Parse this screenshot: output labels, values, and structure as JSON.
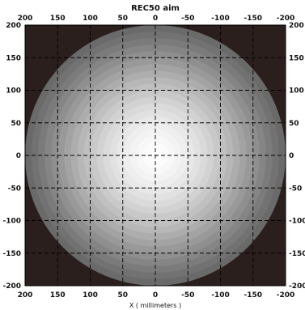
{
  "chart_data": {
    "type": "heatmap",
    "title": "REC50 aim",
    "xlabel": "X ( millimeters )",
    "ylabel": "",
    "xlim": [
      200,
      -200
    ],
    "ylim": [
      -200,
      200
    ],
    "x_ticks": [
      200,
      150,
      100,
      50,
      0,
      -50,
      -100,
      -150,
      -200
    ],
    "y_ticks": [
      200,
      150,
      100,
      50,
      0,
      -50,
      -100,
      -150,
      -200
    ],
    "grid": true,
    "grid_style": "dashed",
    "field": {
      "shape": "radial",
      "center": [
        0,
        0
      ],
      "radius": 200,
      "levels": [
        {
          "r": 200,
          "color": "#6a6a6a"
        },
        {
          "r": 190,
          "color": "#727272"
        },
        {
          "r": 180,
          "color": "#7b7b7b"
        },
        {
          "r": 170,
          "color": "#858585"
        },
        {
          "r": 160,
          "color": "#8f8f8f"
        },
        {
          "r": 150,
          "color": "#999999"
        },
        {
          "r": 140,
          "color": "#a3a3a3"
        },
        {
          "r": 130,
          "color": "#adadad"
        },
        {
          "r": 120,
          "color": "#b7b7b7"
        },
        {
          "r": 110,
          "color": "#c0c0c0"
        },
        {
          "r": 100,
          "color": "#c9c9c9"
        },
        {
          "r": 90,
          "color": "#d2d2d2"
        },
        {
          "r": 80,
          "color": "#dadada"
        },
        {
          "r": 70,
          "color": "#e1e1e1"
        },
        {
          "r": 60,
          "color": "#e8e8e8"
        },
        {
          "r": 50,
          "color": "#eeeeee"
        },
        {
          "r": 40,
          "color": "#f3f3f3"
        },
        {
          "r": 30,
          "color": "#f7f7f7"
        },
        {
          "r": 20,
          "color": "#fbfbfb"
        },
        {
          "r": 10,
          "color": "#ffffff"
        }
      ]
    },
    "background_color": "#2a1f1d",
    "grid_color": "#000000"
  }
}
